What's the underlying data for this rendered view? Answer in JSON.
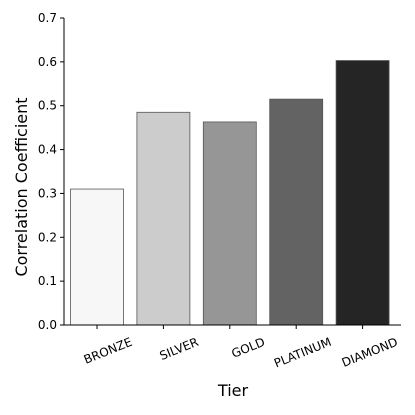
{
  "chart_data": {
    "type": "bar",
    "title": "",
    "xlabel": "Tier",
    "ylabel": "Correlation Coefficient",
    "categories": [
      "BRONZE",
      "SILVER",
      "GOLD",
      "PLATINUM",
      "DIAMOND"
    ],
    "values": [
      0.31,
      0.485,
      0.463,
      0.515,
      0.603
    ],
    "colors": [
      "#f7f7f7",
      "#cccccc",
      "#969696",
      "#636363",
      "#252525"
    ],
    "ylim": [
      0,
      0.7
    ],
    "yticks": [
      0.0,
      0.1,
      0.2,
      0.3,
      0.4,
      0.5,
      0.6,
      0.7
    ],
    "ytick_labels": [
      "0.0",
      "0.1",
      "0.2",
      "0.3",
      "0.4",
      "0.5",
      "0.6",
      "0.7"
    ],
    "grid": false,
    "legend": "none"
  }
}
